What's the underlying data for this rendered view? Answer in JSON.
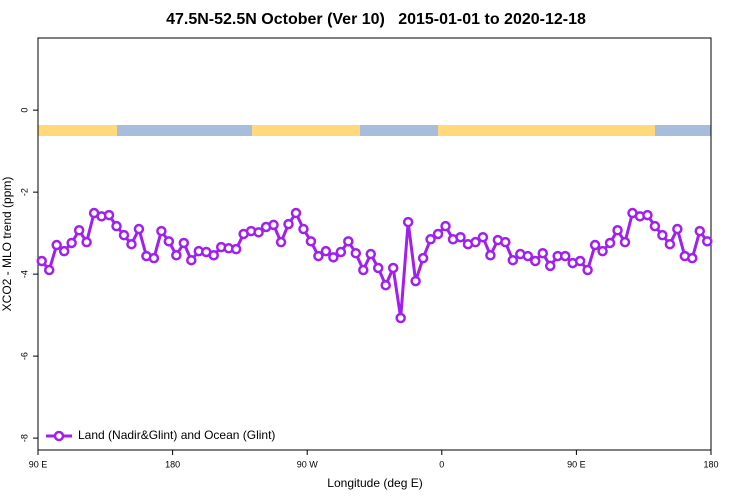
{
  "chart_data": {
    "type": "line",
    "title": "47.5N-52.5N October (Ver 10)   2015-01-01 to 2020-12-18",
    "xlabel": "Longitude (deg E)",
    "ylabel": "XCO2 - MLO trend (ppm)",
    "xlim": [
      90,
      540
    ],
    "ylim": [
      -8.29,
      1.76
    ],
    "xticks": [
      {
        "value": 90,
        "label": "90 E"
      },
      180,
      {
        "value": 270,
        "label": "90 W"
      },
      {
        "value": 360,
        "label": "0"
      },
      {
        "value": 450,
        "label": "90 E"
      },
      {
        "value": 540,
        "label": "180"
      }
    ],
    "yticks": [
      0,
      -2,
      -4,
      -6,
      -8
    ],
    "legend": "bottom-left",
    "x": [
      92.5,
      97.5,
      102.5,
      107.5,
      112.5,
      117.5,
      122.5,
      127.5,
      132.5,
      137.5,
      142.5,
      147.5,
      152.5,
      157.5,
      162.5,
      167.5,
      172.5,
      177.5,
      182.5,
      187.5,
      192.5,
      197.5,
      202.5,
      207.5,
      212.5,
      217.5,
      222.5,
      227.5,
      232.5,
      237.5,
      242.5,
      247.5,
      252.5,
      257.5,
      262.5,
      267.5,
      272.5,
      277.5,
      282.5,
      287.5,
      292.5,
      297.5,
      302.5,
      307.5,
      312.5,
      317.5,
      322.5,
      327.5,
      332.5,
      337.5,
      342.5,
      347.5,
      352.5,
      357.5,
      362.5,
      367.5,
      372.5,
      377.5,
      382.5,
      387.5,
      392.5,
      397.5,
      402.5,
      407.5,
      412.5,
      417.5,
      422.5,
      427.5,
      432.5,
      437.5,
      442.5,
      447.5,
      452.5,
      457.5,
      462.5,
      467.5,
      472.5,
      477.5,
      482.5,
      487.5,
      492.5,
      497.5,
      502.5,
      507.5,
      512.5,
      517.5,
      522.5,
      527.5,
      532.5,
      537.5
    ],
    "series": [
      {
        "name": "Land (Nadir&Glint) and Ocean (Glint)",
        "color": "#a020f0",
        "values": [
          -3.68,
          -3.9,
          -3.29,
          -3.44,
          -3.24,
          -2.93,
          -3.22,
          -2.51,
          -2.59,
          -2.56,
          -2.83,
          -3.05,
          -3.27,
          -2.9,
          -3.56,
          -3.61,
          -2.95,
          -3.2,
          -3.54,
          -3.24,
          -3.66,
          -3.44,
          -3.46,
          -3.54,
          -3.34,
          -3.37,
          -3.39,
          -3.02,
          -2.95,
          -2.98,
          -2.85,
          -2.8,
          -3.22,
          -2.78,
          -2.51,
          -2.9,
          -3.2,
          -3.56,
          -3.44,
          -3.59,
          -3.46,
          -3.2,
          -3.49,
          -3.9,
          -3.51,
          -3.85,
          -4.27,
          -3.85,
          -5.07,
          -2.73,
          -4.17,
          -3.61,
          -3.15,
          -3.02,
          -2.83,
          -3.15,
          -3.1,
          -3.27,
          -3.22,
          -3.1,
          -3.54,
          -3.17,
          -3.22,
          -3.66,
          -3.51,
          -3.56,
          -3.68,
          -3.49,
          -3.8,
          -3.56,
          -3.56,
          -3.73,
          -3.68,
          -3.9,
          -3.29,
          -3.44,
          -3.24,
          -2.93,
          -3.22,
          -2.51,
          -2.59,
          -2.56,
          -2.83,
          -3.05,
          -3.27,
          -2.9,
          -3.56,
          -3.61,
          -2.95,
          -3.2
        ]
      }
    ]
  }
}
